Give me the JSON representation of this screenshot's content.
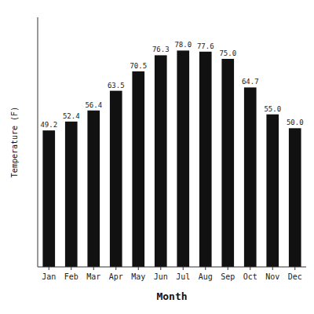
{
  "chart_data": {
    "type": "bar",
    "categories": [
      "Jan",
      "Feb",
      "Mar",
      "Apr",
      "May",
      "Jun",
      "Jul",
      "Aug",
      "Sep",
      "Oct",
      "Nov",
      "Dec"
    ],
    "values": [
      49.2,
      52.4,
      56.4,
      63.5,
      70.5,
      76.3,
      78.0,
      77.6,
      75.0,
      64.7,
      55.0,
      50.0
    ],
    "value_labels": [
      "49.2",
      "52.4",
      "56.4",
      "63.5",
      "70.5",
      "76.3",
      "78.0",
      "77.6",
      "75.0",
      "64.7",
      "55.0",
      "50.0"
    ],
    "color": "#111111",
    "xlabel": "Month",
    "ylabel": "Temperature (F)",
    "ylim": [
      0,
      90
    ],
    "data_labels": true,
    "tick_labels": "x",
    "grid": false
  }
}
